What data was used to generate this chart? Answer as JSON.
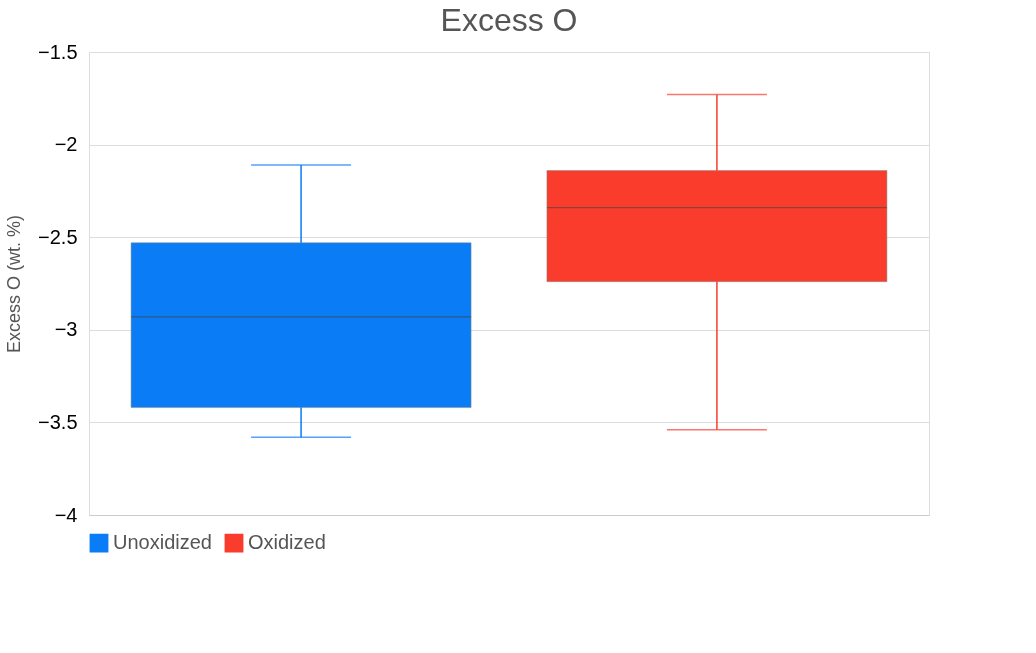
{
  "chart_data": {
    "type": "box",
    "title": "Excess O",
    "ylabel": "Excess O (wt. %)",
    "categories": [
      null
    ],
    "series": [
      {
        "name": "Unoxidized",
        "color": "#0a7cf5",
        "boxes": [
          {
            "low": -3.58,
            "q1": -3.42,
            "median": -2.93,
            "q3": -2.53,
            "high": -2.11
          }
        ]
      },
      {
        "name": "Oxidized",
        "color": "#fa3c2c",
        "boxes": [
          {
            "low": -3.54,
            "q1": -2.74,
            "median": -2.34,
            "q3": -2.14,
            "high": -1.73
          }
        ]
      }
    ],
    "ylim": [
      -4,
      -1.5
    ],
    "yticks": [
      -4,
      -3.5,
      -3,
      -2.5,
      -2,
      -1.5
    ],
    "grid": "y",
    "legend": "bottom",
    "tick_labels": "y"
  }
}
